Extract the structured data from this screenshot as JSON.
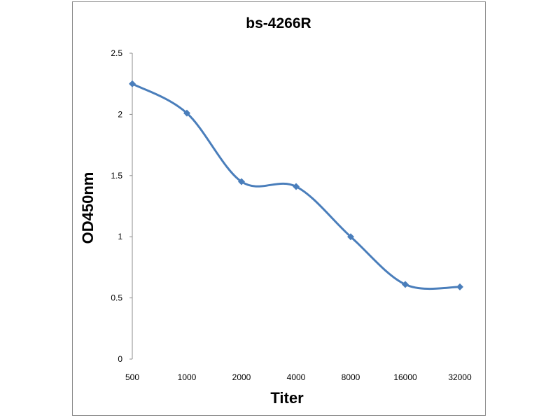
{
  "chart_data": {
    "type": "line",
    "title": "bs-4266R",
    "xlabel": "Titer",
    "ylabel": "OD450nm",
    "categories": [
      "500",
      "1000",
      "2000",
      "4000",
      "8000",
      "16000",
      "32000"
    ],
    "series": [
      {
        "values": [
          2.25,
          2.01,
          1.45,
          1.41,
          1.0,
          0.61,
          0.59
        ],
        "color": "#4a7ebb"
      }
    ],
    "yticks": [
      "0",
      "0.5",
      "1",
      "1.5",
      "2",
      "2.5"
    ],
    "ylim": [
      0,
      2.5
    ],
    "grid": false,
    "legend": "none",
    "smooth": true
  }
}
